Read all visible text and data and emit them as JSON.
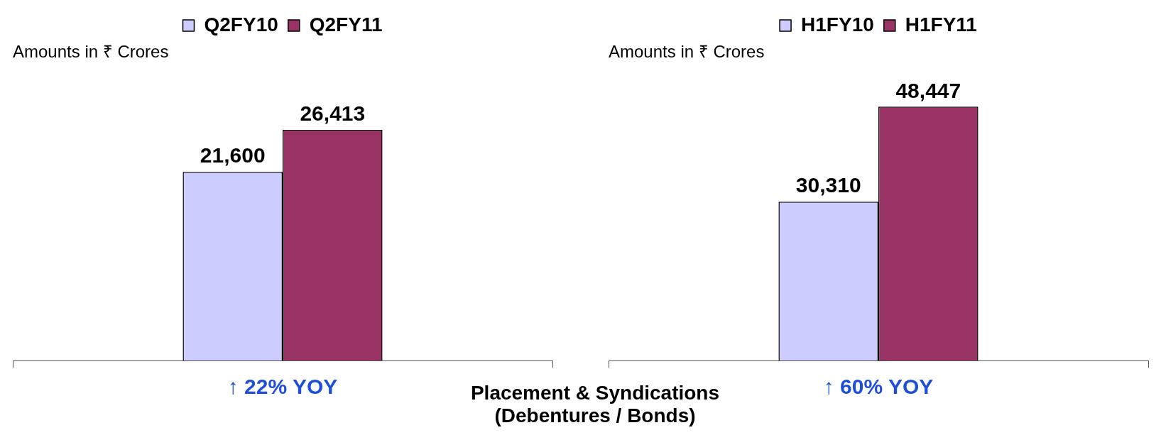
{
  "chart_data": [
    {
      "type": "bar",
      "subtitle": "Amounts in ₹ Crores",
      "categories": [
        null
      ],
      "series": [
        {
          "name": "Q2FY10",
          "color": "#ccccff",
          "values": [
            21600
          ],
          "value_labels": [
            "21,600"
          ]
        },
        {
          "name": "Q2FY11",
          "color": "#993366",
          "values": [
            26413
          ],
          "value_labels": [
            "26,413"
          ]
        }
      ],
      "legend": "top",
      "grid": false,
      "tick_labels": false,
      "annotations": [
        "↑ 22% YOY"
      ]
    },
    {
      "type": "bar",
      "subtitle": "Amounts in ₹ Crores",
      "categories": [
        null
      ],
      "series": [
        {
          "name": "H1FY10",
          "color": "#ccccff",
          "values": [
            30310
          ],
          "value_labels": [
            "30,310"
          ]
        },
        {
          "name": "H1FY11",
          "color": "#993366",
          "values": [
            48447
          ],
          "value_labels": [
            "48,447"
          ]
        }
      ],
      "legend": "top",
      "grid": false,
      "tick_labels": false,
      "annotations": [
        "↑ 60% YOY"
      ]
    },
    {
      "type": "other",
      "annotations": [
        "Placement & Syndications\n(Debentures / Bonds)"
      ]
    }
  ]
}
